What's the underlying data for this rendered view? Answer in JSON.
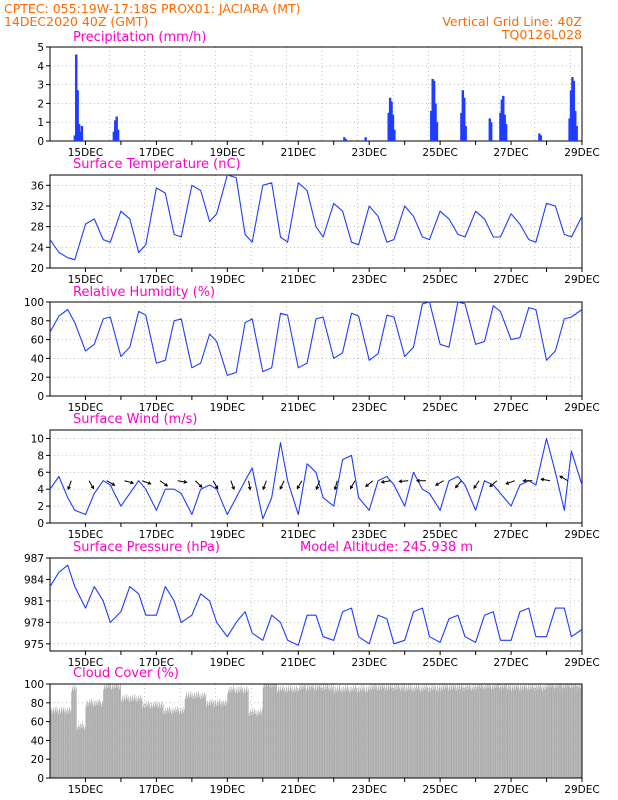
{
  "header": {
    "left_line1": "CPTEC:   055:19W-17:18S   PROX01: JACIARA (MT)",
    "left_line2": "14DEC2020 40Z (GMT)",
    "right_line1": "Vertical Grid Line: 40Z",
    "right_line2": "TQ0126L028"
  },
  "colors": {
    "header": "#ff6a00",
    "panel_title": "#ff00c8",
    "series": "#1f3cff",
    "cloud": "#a9a9a9",
    "grid": "#999999"
  },
  "chart_data": [
    {
      "type": "bar",
      "title": "Precipitation (mm/h)",
      "x_start": "14DEC 40Z",
      "x_end": "29DEC",
      "x_ticks": [
        "15DEC",
        "17DEC",
        "19DEC",
        "21DEC",
        "23DEC",
        "25DEC",
        "27DEC",
        "29DEC"
      ],
      "ylim": [
        0,
        5
      ],
      "y_ticks": [
        0,
        1,
        2,
        3,
        4,
        5
      ],
      "grid": true,
      "events": [
        {
          "day": 14.7,
          "values": [
            0.3,
            4.6,
            2.7,
            0.9,
            0.5,
            0.8
          ]
        },
        {
          "day": 15.8,
          "values": [
            0.5,
            1.1,
            1.3,
            0.6
          ]
        },
        {
          "day": 22.3,
          "values": [
            0.2,
            0.1
          ]
        },
        {
          "day": 22.9,
          "values": [
            0.2
          ]
        },
        {
          "day": 23.55,
          "values": [
            1.5,
            2.3,
            2.1,
            1.4,
            0.6
          ]
        },
        {
          "day": 24.75,
          "values": [
            1.6,
            3.3,
            3.2,
            2.0,
            1.0
          ]
        },
        {
          "day": 25.6,
          "values": [
            1.5,
            2.7,
            2.3,
            0.8
          ]
        },
        {
          "day": 26.4,
          "values": [
            1.2,
            1.0
          ]
        },
        {
          "day": 26.7,
          "values": [
            1.5,
            2.2,
            2.4,
            1.4,
            0.9
          ]
        },
        {
          "day": 27.8,
          "values": [
            0.4,
            0.3
          ]
        },
        {
          "day": 28.65,
          "values": [
            1.2,
            2.7,
            3.4,
            3.2,
            1.6,
            0.8
          ]
        }
      ]
    },
    {
      "type": "line",
      "title": "Surface Temperature (nC)",
      "x_ticks": [
        "15DEC",
        "17DEC",
        "19DEC",
        "21DEC",
        "23DEC",
        "25DEC",
        "27DEC",
        "29DEC"
      ],
      "ylim": [
        20,
        38
      ],
      "y_ticks": [
        20,
        24,
        28,
        32,
        36
      ],
      "grid": true,
      "series": [
        {
          "x": [
            14.0,
            14.25,
            14.5,
            14.7,
            15.0,
            15.25,
            15.5,
            15.7,
            16.0,
            16.25,
            16.5,
            16.7,
            17.0,
            17.25,
            17.5,
            17.7,
            18.0,
            18.25,
            18.5,
            18.7,
            19.0,
            19.25,
            19.5,
            19.7,
            20.0,
            20.25,
            20.5,
            20.7,
            21.0,
            21.25,
            21.5,
            21.7,
            22.0,
            22.25,
            22.5,
            22.7,
            23.0,
            23.25,
            23.5,
            23.7,
            24.0,
            24.25,
            24.5,
            24.7,
            25.0,
            25.25,
            25.5,
            25.7,
            26.0,
            26.25,
            26.5,
            26.7,
            27.0,
            27.25,
            27.5,
            27.7,
            28.0,
            28.25,
            28.5,
            28.7,
            29.0
          ],
          "values": [
            25.5,
            23,
            22,
            21.6,
            28.5,
            29.5,
            25.5,
            25,
            31,
            29.5,
            23,
            24.5,
            35.5,
            34.5,
            26.5,
            26,
            36,
            35,
            29,
            30.5,
            38,
            37.5,
            26.5,
            25,
            36,
            36.5,
            26,
            25,
            36.5,
            35,
            28,
            26,
            32.5,
            31,
            25,
            24.5,
            32,
            30,
            25,
            25.5,
            32,
            30,
            26,
            25.5,
            31,
            29.5,
            26.5,
            26,
            31,
            29.5,
            26,
            26,
            30.5,
            28.5,
            25.5,
            25,
            32.5,
            32,
            26.5,
            26,
            30
          ]
        }
      ]
    },
    {
      "type": "line",
      "title": "Relative Humidity (%)",
      "x_ticks": [
        "15DEC",
        "17DEC",
        "19DEC",
        "21DEC",
        "23DEC",
        "25DEC",
        "27DEC",
        "29DEC"
      ],
      "ylim": [
        0,
        100
      ],
      "y_ticks": [
        0,
        20,
        40,
        60,
        80,
        100
      ],
      "grid": true,
      "series": [
        {
          "x": [
            14.0,
            14.25,
            14.5,
            14.7,
            15.0,
            15.25,
            15.5,
            15.7,
            16.0,
            16.25,
            16.5,
            16.7,
            17.0,
            17.25,
            17.5,
            17.7,
            18.0,
            18.25,
            18.5,
            18.7,
            19.0,
            19.25,
            19.5,
            19.7,
            20.0,
            20.25,
            20.5,
            20.7,
            21.0,
            21.25,
            21.5,
            21.7,
            22.0,
            22.25,
            22.5,
            22.7,
            23.0,
            23.25,
            23.5,
            23.7,
            24.0,
            24.25,
            24.5,
            24.7,
            25.0,
            25.25,
            25.5,
            25.7,
            26.0,
            26.25,
            26.5,
            26.7,
            27.0,
            27.25,
            27.5,
            27.7,
            28.0,
            28.25,
            28.5,
            28.7,
            29.0
          ],
          "values": [
            68,
            85,
            92,
            78,
            48,
            55,
            82,
            84,
            42,
            52,
            90,
            86,
            35,
            38,
            80,
            82,
            30,
            35,
            66,
            58,
            22,
            25,
            78,
            82,
            26,
            30,
            88,
            86,
            30,
            35,
            82,
            84,
            40,
            46,
            88,
            85,
            38,
            45,
            86,
            84,
            42,
            52,
            98,
            100,
            55,
            52,
            100,
            98,
            55,
            58,
            96,
            90,
            60,
            62,
            94,
            92,
            38,
            48,
            82,
            84,
            92
          ]
        }
      ]
    },
    {
      "type": "line",
      "title": "Surface Wind (m/s)",
      "x_ticks": [
        "15DEC",
        "17DEC",
        "19DEC",
        "21DEC",
        "23DEC",
        "25DEC",
        "27DEC",
        "29DEC"
      ],
      "ylim": [
        0,
        11
      ],
      "y_ticks": [
        0,
        2,
        4,
        6,
        8,
        10
      ],
      "grid": true,
      "series": [
        {
          "x": [
            14.0,
            14.25,
            14.5,
            14.7,
            15.0,
            15.25,
            15.5,
            15.7,
            16.0,
            16.25,
            16.5,
            16.7,
            17.0,
            17.25,
            17.5,
            17.7,
            18.0,
            18.25,
            18.5,
            18.7,
            19.0,
            19.25,
            19.5,
            19.7,
            20.0,
            20.25,
            20.5,
            20.7,
            21.0,
            21.25,
            21.5,
            21.7,
            22.0,
            22.25,
            22.5,
            22.7,
            23.0,
            23.25,
            23.5,
            23.7,
            24.0,
            24.25,
            24.5,
            24.7,
            25.0,
            25.25,
            25.5,
            25.7,
            26.0,
            26.25,
            26.5,
            26.7,
            27.0,
            27.25,
            27.5,
            27.7,
            28.0,
            28.25,
            28.5,
            28.7,
            29.0
          ],
          "values": [
            4,
            5.5,
            3,
            1.5,
            1,
            3.5,
            5,
            4.5,
            2,
            3.5,
            5,
            4,
            1.5,
            4,
            4,
            3.5,
            1,
            4,
            4.5,
            4,
            1,
            3,
            5,
            6.5,
            0.5,
            3,
            9.5,
            5,
            1,
            7,
            6,
            3,
            2,
            7.5,
            8,
            3,
            1.5,
            5,
            5.5,
            4.5,
            2,
            6,
            4,
            3.5,
            1.5,
            5,
            5.5,
            4.5,
            1.5,
            5,
            4.5,
            3.5,
            2,
            4.5,
            5,
            4.5,
            10,
            6,
            1.5,
            8.5,
            4.5
          ]
        }
      ],
      "arrows_deg": [
        200,
        150,
        120,
        105,
        110,
        125,
        100,
        135,
        150,
        160,
        170,
        200,
        205,
        210,
        200,
        195,
        210,
        230,
        260,
        265,
        270,
        240,
        220,
        215,
        230,
        250,
        270,
        280,
        300
      ]
    },
    {
      "type": "line",
      "title": "Surface Pressure (hPa)",
      "annotation": "Model Altitude: 245.938 m",
      "x_ticks": [
        "15DEC",
        "17DEC",
        "19DEC",
        "21DEC",
        "23DEC",
        "25DEC",
        "27DEC",
        "29DEC"
      ],
      "ylim": [
        974,
        987
      ],
      "y_ticks": [
        975,
        978,
        981,
        984,
        987
      ],
      "grid": true,
      "series": [
        {
          "x": [
            14.0,
            14.25,
            14.5,
            14.7,
            15.0,
            15.25,
            15.5,
            15.7,
            16.0,
            16.25,
            16.5,
            16.7,
            17.0,
            17.25,
            17.5,
            17.7,
            18.0,
            18.25,
            18.5,
            18.7,
            19.0,
            19.25,
            19.5,
            19.7,
            20.0,
            20.25,
            20.5,
            20.7,
            21.0,
            21.25,
            21.5,
            21.7,
            22.0,
            22.25,
            22.5,
            22.7,
            23.0,
            23.25,
            23.5,
            23.7,
            24.0,
            24.25,
            24.5,
            24.7,
            25.0,
            25.25,
            25.5,
            25.7,
            26.0,
            26.25,
            26.5,
            26.7,
            27.0,
            27.25,
            27.5,
            27.7,
            28.0,
            28.25,
            28.5,
            28.7,
            29.0
          ],
          "values": [
            983,
            985,
            986,
            983,
            980,
            983,
            981,
            978,
            979.5,
            983,
            982,
            979,
            979,
            983,
            981,
            978,
            979,
            982,
            981,
            978,
            976,
            978,
            979.5,
            976.5,
            975.5,
            979,
            978,
            975.5,
            974.8,
            979,
            979,
            976,
            975.5,
            979.5,
            980,
            976,
            975,
            979,
            978.5,
            975,
            975.5,
            979.5,
            980,
            976,
            975.2,
            978.5,
            979,
            976,
            975.2,
            979,
            979.5,
            975.5,
            975.5,
            979.5,
            980,
            976,
            976,
            980,
            980,
            976,
            977
          ]
        }
      ]
    },
    {
      "type": "bar",
      "title": "Cloud Cover (%)",
      "x_ticks": [
        "15DEC",
        "17DEC",
        "19DEC",
        "21DEC",
        "23DEC",
        "25DEC",
        "27DEC",
        "29DEC"
      ],
      "ylim": [
        0,
        100
      ],
      "y_ticks": [
        0,
        20,
        40,
        60,
        80,
        100
      ],
      "grid": true,
      "segments": [
        {
          "from": 14.0,
          "to": 14.6,
          "value": 72
        },
        {
          "from": 14.6,
          "to": 14.75,
          "value": 96
        },
        {
          "from": 14.75,
          "to": 15.0,
          "value": 55
        },
        {
          "from": 15.0,
          "to": 15.5,
          "value": 80
        },
        {
          "from": 15.5,
          "to": 16.0,
          "value": 98
        },
        {
          "from": 16.0,
          "to": 16.6,
          "value": 85
        },
        {
          "from": 16.6,
          "to": 17.2,
          "value": 78
        },
        {
          "from": 17.2,
          "to": 17.8,
          "value": 72
        },
        {
          "from": 17.8,
          "to": 18.4,
          "value": 88
        },
        {
          "from": 18.4,
          "to": 19.0,
          "value": 80
        },
        {
          "from": 19.0,
          "to": 19.6,
          "value": 94
        },
        {
          "from": 19.6,
          "to": 20.0,
          "value": 70
        },
        {
          "from": 20.0,
          "to": 20.4,
          "value": 100
        },
        {
          "from": 20.4,
          "to": 21.0,
          "value": 95
        },
        {
          "from": 21.0,
          "to": 22.0,
          "value": 97
        },
        {
          "from": 22.0,
          "to": 23.0,
          "value": 95
        },
        {
          "from": 23.0,
          "to": 24.0,
          "value": 97
        },
        {
          "from": 24.0,
          "to": 25.0,
          "value": 96
        },
        {
          "from": 25.0,
          "to": 26.0,
          "value": 97
        },
        {
          "from": 26.0,
          "to": 27.0,
          "value": 98
        },
        {
          "from": 27.0,
          "to": 28.0,
          "value": 97
        },
        {
          "from": 28.0,
          "to": 29.0,
          "value": 99
        }
      ]
    }
  ]
}
